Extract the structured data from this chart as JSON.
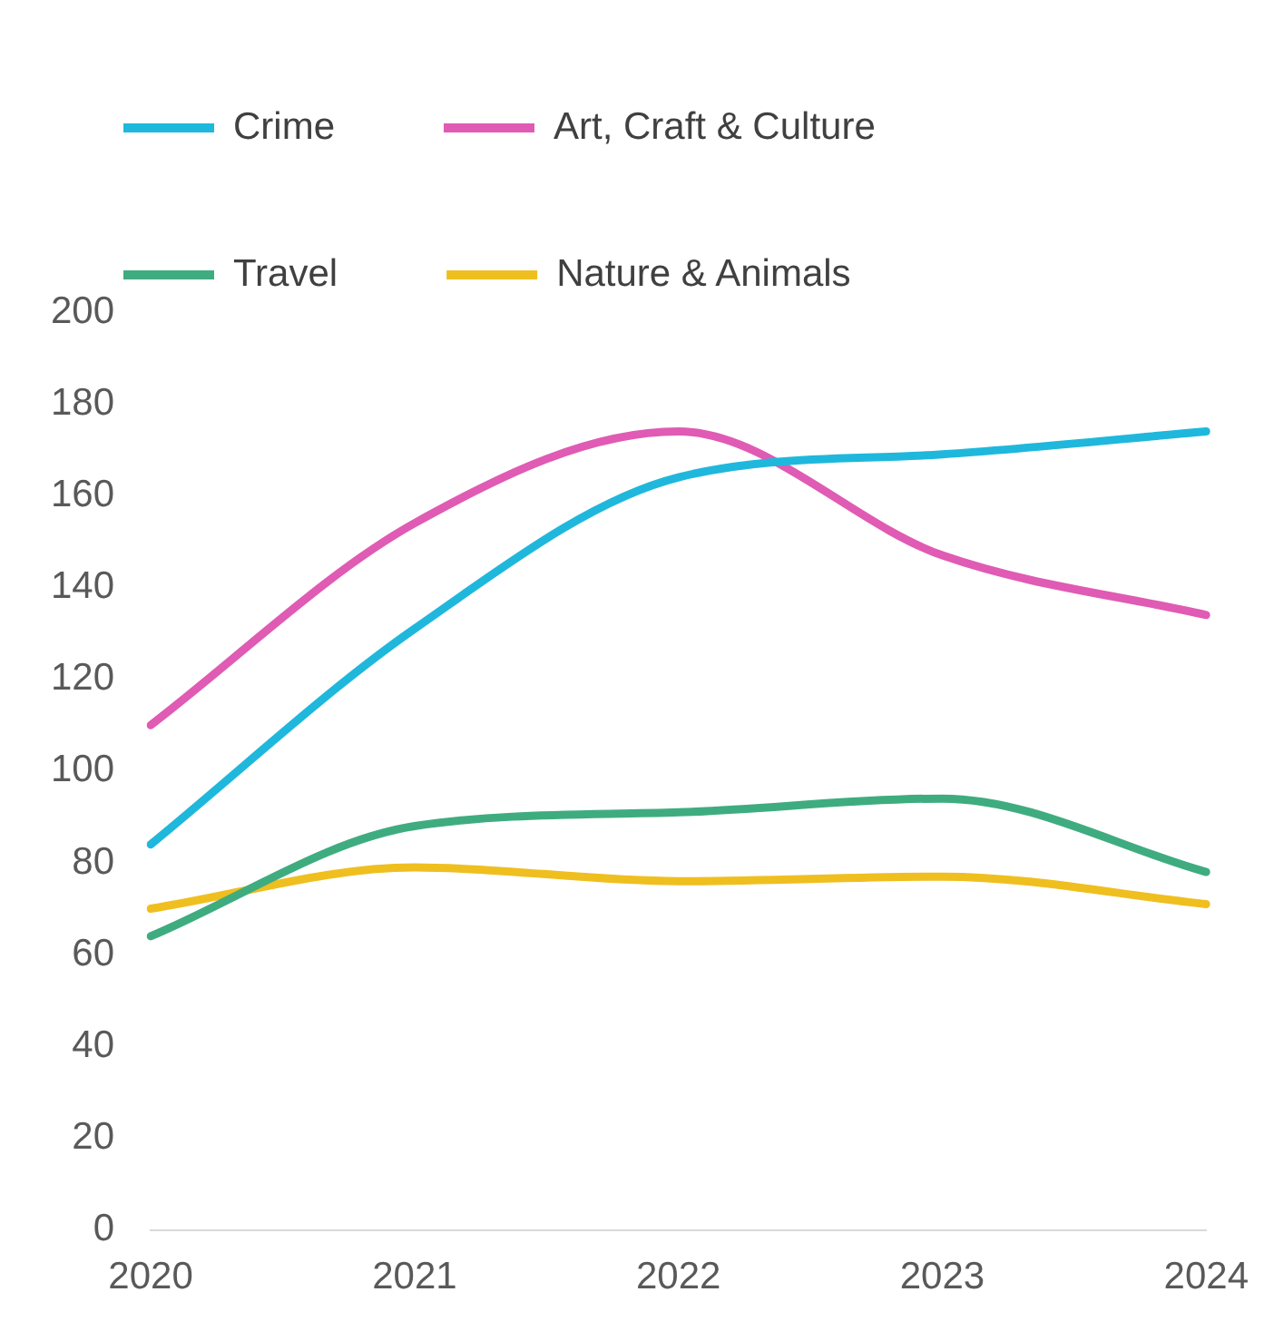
{
  "chart_data": {
    "type": "line",
    "categories": [
      "2020",
      "2021",
      "2022",
      "2023",
      "2024"
    ],
    "series": [
      {
        "name": "Crime",
        "color": "#1fb8dc",
        "values": [
          84,
          131,
          164,
          169,
          174
        ]
      },
      {
        "name": "Art, Craft & Culture",
        "color": "#e05bb4",
        "values": [
          110,
          154,
          174,
          147,
          134
        ]
      },
      {
        "name": "Travel",
        "color": "#3fac80",
        "values": [
          64,
          88,
          91,
          94,
          78
        ]
      },
      {
        "name": "Nature & Animals",
        "color": "#efbf1f",
        "values": [
          70,
          79,
          76,
          77,
          71
        ]
      }
    ],
    "ylim": [
      0,
      200
    ],
    "yticks": [
      0,
      20,
      40,
      60,
      80,
      100,
      120,
      140,
      160,
      180,
      200
    ],
    "grid": false,
    "legend": "top",
    "marker": "none",
    "line_style": "solid"
  }
}
